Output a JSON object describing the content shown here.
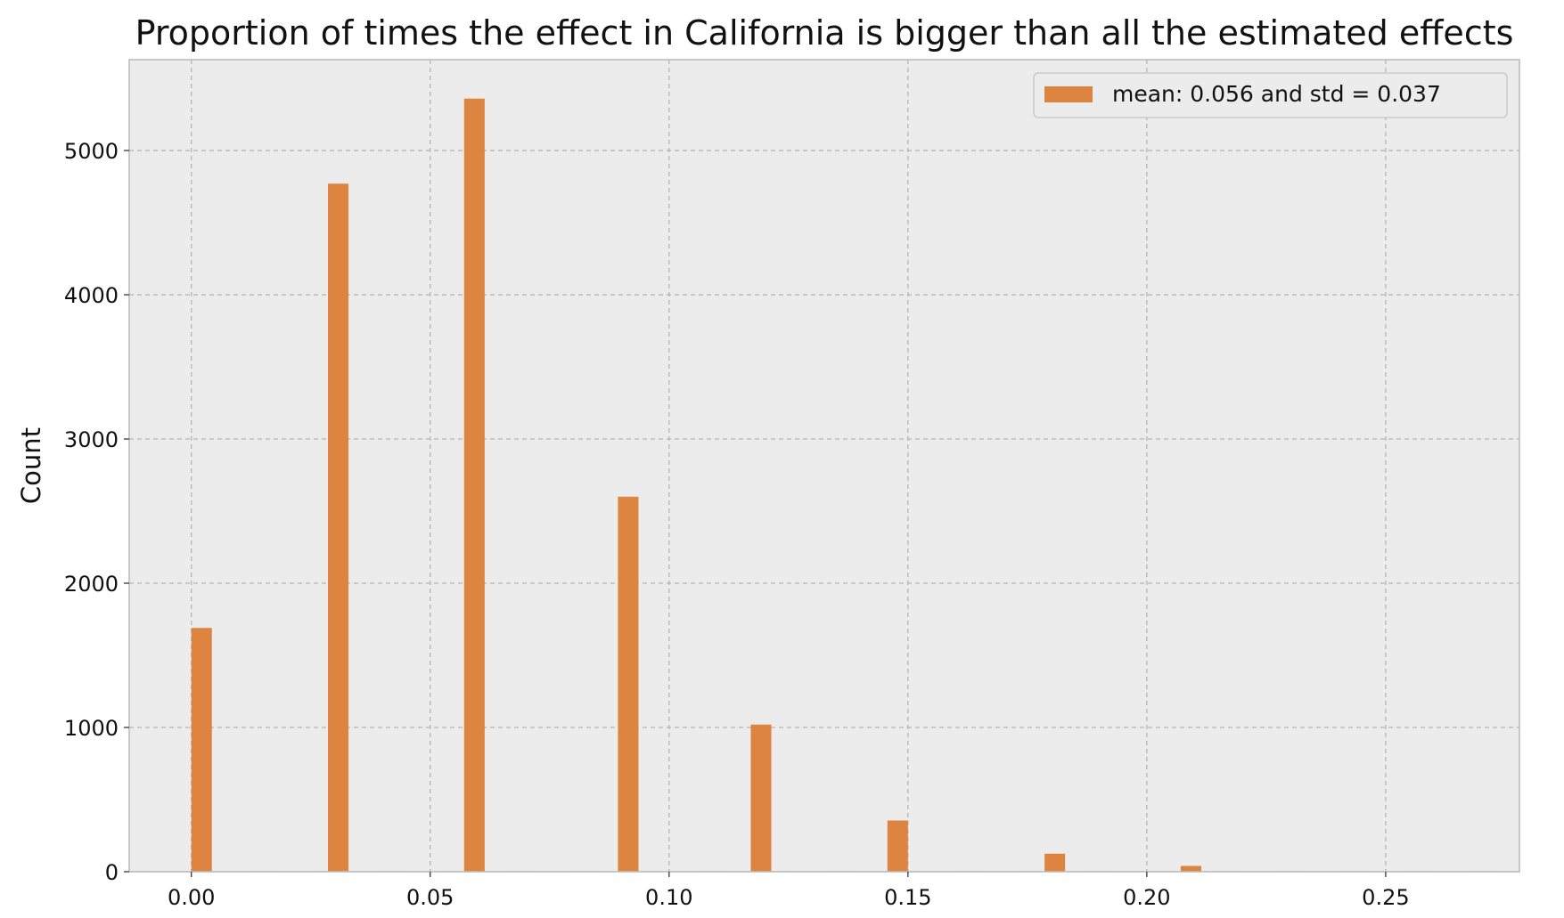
{
  "chart_data": {
    "type": "bar",
    "title": "Proportion of times the effect in California is bigger than all the estimated effects",
    "xlabel": "",
    "ylabel": "Count",
    "xlim": [
      -0.013,
      0.278
    ],
    "ylim": [
      0,
      5630
    ],
    "xticks": [
      "0.00",
      "0.05",
      "0.10",
      "0.15",
      "0.20",
      "0.25"
    ],
    "yticks": [
      "0",
      "1000",
      "2000",
      "3000",
      "4000",
      "5000"
    ],
    "bar_width": 0.0043,
    "x": [
      0.0,
      0.0286,
      0.0571,
      0.0893,
      0.1171,
      0.1457,
      0.1786,
      0.2071
    ],
    "values": [
      1690,
      4770,
      5360,
      2600,
      1020,
      355,
      125,
      40
    ],
    "legend": {
      "label": "mean:  0.056 and std =  0.037",
      "position": "upper right"
    },
    "grid": true,
    "colors": {
      "bar": "#dc8440",
      "plot_bg": "#ececec",
      "grid": "#b5b5b5",
      "frame": "#bcbcbc"
    }
  }
}
